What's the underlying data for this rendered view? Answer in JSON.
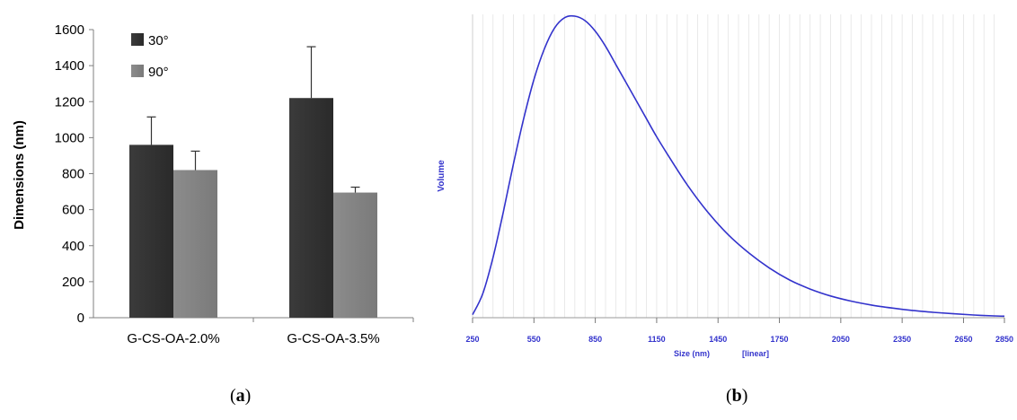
{
  "chart_data": [
    {
      "type": "bar",
      "panel_label": "a",
      "ylabel": "Dimensions (nm)",
      "xlabel": "",
      "title": "",
      "ylim": [
        0,
        1600
      ],
      "yticks": [
        0,
        200,
        400,
        600,
        800,
        1000,
        1200,
        1400,
        1600
      ],
      "categories": [
        "G-CS-OA-2.0%",
        "G-CS-OA-3.5%"
      ],
      "series": [
        {
          "name": "30°",
          "values": [
            960,
            1220
          ],
          "errors": [
            155,
            285
          ],
          "color": "#3b3b3b"
        },
        {
          "name": "90°",
          "values": [
            820,
            695
          ],
          "errors": [
            105,
            30
          ],
          "color": "#8c8c8c"
        }
      ],
      "grid": false,
      "legend_position": "top-left"
    },
    {
      "type": "line",
      "panel_label": "b",
      "xlabel": "Size (nm)",
      "xscale_note": "[linear]",
      "ylabel": "Volume",
      "title": "",
      "xlim": [
        250,
        2850
      ],
      "xticks": [
        250,
        550,
        850,
        1150,
        1450,
        1750,
        2050,
        2350,
        2650,
        2850
      ],
      "ylim": [
        0,
        100
      ],
      "grid": true,
      "color": "#3333cc",
      "series": [
        {
          "x": [
            250,
            300,
            350,
            400,
            450,
            500,
            550,
            600,
            650,
            700,
            750,
            800,
            850,
            900,
            950,
            1000,
            1050,
            1100,
            1150,
            1200,
            1300,
            1400,
            1500,
            1600,
            1700,
            1800,
            1900,
            2000,
            2100,
            2200,
            2300,
            2400,
            2500,
            2600,
            2700,
            2800,
            2850
          ],
          "y": [
            1,
            8,
            20,
            35,
            51,
            66,
            79,
            89,
            96,
            99.5,
            100,
            98.5,
            95,
            90,
            84,
            78,
            72,
            66,
            60,
            54.5,
            44,
            35,
            27.5,
            21.5,
            16.5,
            12.5,
            9.5,
            7.2,
            5.5,
            4.2,
            3.2,
            2.4,
            1.8,
            1.3,
            0.9,
            0.6,
            0.5
          ]
        }
      ]
    }
  ]
}
